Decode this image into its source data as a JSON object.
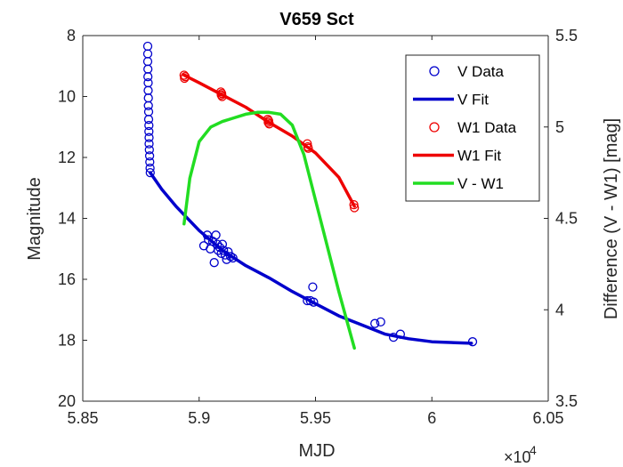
{
  "chart_data": {
    "type": "line",
    "title": "V659 Sct",
    "xlabel": "MJD",
    "ylabel_left": "Magnitude",
    "ylabel_right": "Difference (V - W1) [mag]",
    "x_exponent_label": "×10",
    "x_exponent_power": "4",
    "xlim": [
      5.85,
      6.05
    ],
    "ylim_left": [
      8,
      20
    ],
    "ylim_left_reversed": true,
    "ylim_right": [
      3.5,
      5.5
    ],
    "xticks": [
      5.85,
      5.9,
      5.95,
      6.0,
      6.05
    ],
    "xtick_labels": [
      "5.85",
      "5.9",
      "5.95",
      "6",
      "6.05"
    ],
    "yticks_left": [
      8,
      10,
      12,
      14,
      16,
      18,
      20
    ],
    "ytick_left_labels": [
      "8",
      "10",
      "12",
      "14",
      "16",
      "18",
      "20"
    ],
    "yticks_right": [
      3.5,
      4,
      4.5,
      5,
      5.5
    ],
    "ytick_right_labels": [
      "3.5",
      "4",
      "4.5",
      "5",
      "5.5"
    ],
    "grid": false,
    "legend_position": "top-right",
    "colors": {
      "v": "#0000cc",
      "w1": "#ee0000",
      "diff": "#22dd22"
    },
    "series": [
      {
        "name": "V Data",
        "kind": "scatter",
        "axis": "left",
        "color": "#0000cc",
        "points": [
          [
            5.8779,
            8.35
          ],
          [
            5.8779,
            8.6
          ],
          [
            5.8779,
            8.85
          ],
          [
            5.878,
            9.1
          ],
          [
            5.878,
            9.35
          ],
          [
            5.8781,
            9.55
          ],
          [
            5.8781,
            9.8
          ],
          [
            5.8782,
            10.05
          ],
          [
            5.8782,
            10.3
          ],
          [
            5.8783,
            10.5
          ],
          [
            5.8783,
            10.75
          ],
          [
            5.8784,
            10.95
          ],
          [
            5.8784,
            11.15
          ],
          [
            5.8785,
            11.35
          ],
          [
            5.8785,
            11.55
          ],
          [
            5.8786,
            11.75
          ],
          [
            5.8787,
            11.95
          ],
          [
            5.8788,
            12.15
          ],
          [
            5.8789,
            12.35
          ],
          [
            5.879,
            12.5
          ],
          [
            5.902,
            14.9
          ],
          [
            5.9035,
            14.55
          ],
          [
            5.904,
            14.7
          ],
          [
            5.9048,
            15.0
          ],
          [
            5.9058,
            14.75
          ],
          [
            5.9065,
            15.45
          ],
          [
            5.9072,
            14.55
          ],
          [
            5.9078,
            14.85
          ],
          [
            5.9082,
            15.05
          ],
          [
            5.9088,
            14.95
          ],
          [
            5.9095,
            15.15
          ],
          [
            5.91,
            14.85
          ],
          [
            5.9105,
            15.05
          ],
          [
            5.9112,
            15.2
          ],
          [
            5.9118,
            15.35
          ],
          [
            5.9125,
            15.1
          ],
          [
            5.9135,
            15.25
          ],
          [
            5.9145,
            15.3
          ],
          [
            5.9465,
            16.7
          ],
          [
            5.9478,
            16.7
          ],
          [
            5.9488,
            16.25
          ],
          [
            5.9492,
            16.75
          ],
          [
            5.9755,
            17.45
          ],
          [
            5.978,
            17.4
          ],
          [
            5.9835,
            17.9
          ],
          [
            5.9865,
            17.8
          ],
          [
            6.0175,
            18.05
          ]
        ]
      },
      {
        "name": "V Fit",
        "kind": "line",
        "axis": "left",
        "color": "#0000cc",
        "points": [
          [
            5.879,
            12.5
          ],
          [
            5.884,
            13.05
          ],
          [
            5.89,
            13.6
          ],
          [
            5.9,
            14.4
          ],
          [
            5.91,
            15.05
          ],
          [
            5.92,
            15.55
          ],
          [
            5.93,
            15.95
          ],
          [
            5.94,
            16.4
          ],
          [
            5.95,
            16.8
          ],
          [
            5.96,
            17.2
          ],
          [
            5.97,
            17.5
          ],
          [
            5.98,
            17.8
          ],
          [
            5.99,
            17.95
          ],
          [
            6.0,
            18.05
          ],
          [
            6.01,
            18.08
          ],
          [
            6.017,
            18.1
          ]
        ]
      },
      {
        "name": "W1 Data",
        "kind": "scatter",
        "axis": "left",
        "color": "#ee0000",
        "points": [
          [
            5.8935,
            9.3
          ],
          [
            5.8937,
            9.4
          ],
          [
            5.894,
            9.35
          ],
          [
            5.9093,
            9.85
          ],
          [
            5.9095,
            9.95
          ],
          [
            5.9097,
            9.9
          ],
          [
            5.9099,
            10.0
          ],
          [
            5.9295,
            10.75
          ],
          [
            5.9297,
            10.85
          ],
          [
            5.9299,
            10.8
          ],
          [
            5.9301,
            10.9
          ],
          [
            5.9465,
            11.55
          ],
          [
            5.9467,
            11.65
          ],
          [
            5.9469,
            11.7
          ],
          [
            5.9665,
            13.55
          ],
          [
            5.9667,
            13.65
          ]
        ]
      },
      {
        "name": "W1 Fit",
        "kind": "line",
        "axis": "left",
        "color": "#ee0000",
        "points": [
          [
            5.8935,
            9.3
          ],
          [
            5.9,
            9.55
          ],
          [
            5.91,
            9.95
          ],
          [
            5.92,
            10.35
          ],
          [
            5.93,
            10.85
          ],
          [
            5.94,
            11.3
          ],
          [
            5.95,
            11.85
          ],
          [
            5.96,
            12.65
          ],
          [
            5.9667,
            13.6
          ]
        ]
      },
      {
        "name": "V - W1",
        "kind": "line",
        "axis": "right",
        "color": "#22dd22",
        "points": [
          [
            5.8935,
            4.47
          ],
          [
            5.896,
            4.72
          ],
          [
            5.9,
            4.92
          ],
          [
            5.905,
            5.0
          ],
          [
            5.91,
            5.03
          ],
          [
            5.915,
            5.05
          ],
          [
            5.92,
            5.07
          ],
          [
            5.925,
            5.08
          ],
          [
            5.93,
            5.08
          ],
          [
            5.935,
            5.07
          ],
          [
            5.94,
            5.01
          ],
          [
            5.945,
            4.85
          ],
          [
            5.95,
            4.6
          ],
          [
            5.955,
            4.35
          ],
          [
            5.96,
            4.1
          ],
          [
            5.9667,
            3.79
          ]
        ]
      }
    ],
    "legend": [
      "V Data",
      "V Fit",
      "W1 Data",
      "W1 Fit",
      "V - W1"
    ]
  }
}
